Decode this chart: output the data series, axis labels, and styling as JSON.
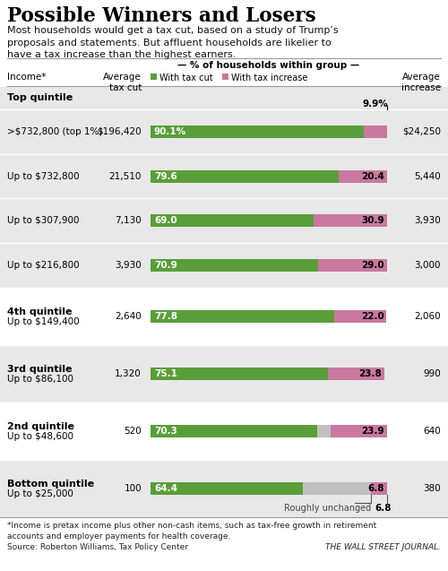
{
  "title": "Possible Winners and Losers",
  "subtitle": "Most households would get a tax cut, based on a study of Trump’s\nproposals and statements. But affluent households are likelier to\nhave a tax increase than the highest earners.",
  "col_header_center": "— % of households within group —",
  "col_header_left": "Average\ntax cut",
  "col_header_right": "Average\nincrease",
  "col_header_income": "Income*",
  "legend_green": "With tax cut",
  "legend_pink": "With tax increase",
  "footnote1": "*Income is pretax income plus other non-cash items, such as tax-free growth in retirement\naccounts and employer payments for health coverage.",
  "footnote2": "Source: Roberton Williams, Tax Policy Center",
  "source_right": "THE WALL STREET JOURNAL.",
  "rows": [
    {
      "type": "group_header",
      "group_label": "Top quintile",
      "bg": "#e8e8e8"
    },
    {
      "type": "data",
      "sub_label": ">$732,800 (top 1%)",
      "avg_tax_cut": "$196,420",
      "green": 90.1,
      "gray": 0,
      "pink": 9.9,
      "green_label": "90.1%",
      "pink_label": "9.9%",
      "pink_label_above": true,
      "avg_increase": "$24,250",
      "bg": "#e8e8e8"
    },
    {
      "type": "data",
      "sub_label": "Up to $732,800",
      "avg_tax_cut": "21,510",
      "green": 79.6,
      "gray": 0,
      "pink": 20.4,
      "green_label": "79.6",
      "pink_label": "20.4",
      "pink_label_above": false,
      "avg_increase": "5,440",
      "bg": "#e8e8e8"
    },
    {
      "type": "data",
      "sub_label": "Up to $307,900",
      "avg_tax_cut": "7,130",
      "green": 69.0,
      "gray": 0,
      "pink": 30.9,
      "green_label": "69.0",
      "pink_label": "30.9",
      "pink_label_above": false,
      "avg_increase": "3,930",
      "bg": "#e8e8e8"
    },
    {
      "type": "data",
      "sub_label": "Up to $216,800",
      "avg_tax_cut": "3,930",
      "green": 70.9,
      "gray": 0,
      "pink": 29.0,
      "green_label": "70.9",
      "pink_label": "29.0",
      "pink_label_above": false,
      "avg_increase": "3,000",
      "bg": "#e8e8e8"
    },
    {
      "type": "group_data",
      "group_label": "4th quintile",
      "sub_label": "Up to $149,400",
      "avg_tax_cut": "2,640",
      "green": 77.8,
      "gray": 0,
      "pink": 22.0,
      "green_label": "77.8",
      "pink_label": "22.0",
      "pink_label_above": false,
      "avg_increase": "2,060",
      "bg": "#ffffff"
    },
    {
      "type": "group_data",
      "group_label": "3rd quintile",
      "sub_label": "Up to $86,100",
      "avg_tax_cut": "1,320",
      "green": 75.1,
      "gray": 0,
      "pink": 23.8,
      "green_label": "75.1",
      "pink_label": "23.8",
      "pink_label_above": false,
      "avg_increase": "990",
      "bg": "#e8e8e8"
    },
    {
      "type": "group_data",
      "group_label": "2nd quintile",
      "sub_label": "Up to $48,600",
      "avg_tax_cut": "520",
      "green": 70.3,
      "gray": 5.8,
      "pink": 23.9,
      "green_label": "70.3",
      "pink_label": "23.9",
      "pink_label_above": false,
      "avg_increase": "640",
      "bg": "#ffffff"
    },
    {
      "type": "group_data",
      "group_label": "Bottom quintile",
      "sub_label": "Up to $25,000",
      "avg_tax_cut": "100",
      "green": 64.4,
      "gray": 28.8,
      "pink": 6.8,
      "green_label": "64.4",
      "pink_label": "6.8",
      "pink_label_above": false,
      "avg_increase": "380",
      "bg": "#e8e8e8",
      "roughly_unchanged": true
    }
  ],
  "green_color": "#5a9e3a",
  "pink_color": "#c978a0",
  "gray_color": "#c0c0c0",
  "divider_color": "#cccccc"
}
